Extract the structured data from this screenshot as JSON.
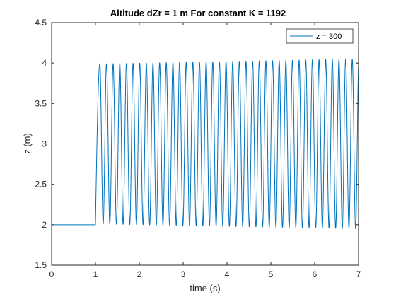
{
  "chart_data": {
    "type": "line",
    "title": "Altitude dZr = 1 m    For constant K = 1192",
    "xlabel": "time (s)",
    "ylabel": "z (m)",
    "xlim": [
      0,
      7
    ],
    "ylim": [
      1.5,
      4.5
    ],
    "x_ticks": [
      "0",
      "1",
      "2",
      "3",
      "4",
      "5",
      "6",
      "7"
    ],
    "y_ticks": [
      "1.5",
      "2",
      "2.5",
      "3",
      "3.5",
      "4",
      "4.5"
    ],
    "grid": false,
    "legend_position": "top-right",
    "series": [
      {
        "name": "z = 300",
        "color": "#0072BD",
        "step_time": 1.0,
        "initial_value": 2.0,
        "center": 3.0,
        "amplitude_start": 0.99,
        "amplitude_end": 1.05,
        "oscillation_start": 1.1,
        "period": 0.1515
      }
    ]
  }
}
